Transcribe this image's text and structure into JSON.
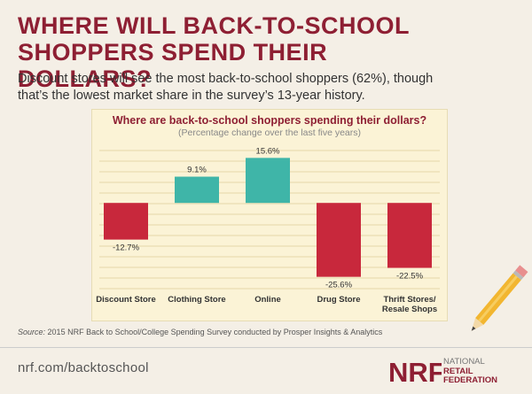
{
  "headline": "WHERE WILL BACK-TO-SCHOOL SHOPPERS SPEND THEIR DOLLARS?",
  "subtitle": "Discount stores will see the most back-to-school shoppers (62%), though that’s the lowest market share in the survey’s 13-year history.",
  "colors": {
    "accent": "#8e1f33",
    "positive_bar": "#3fb5a8",
    "negative_bar": "#c8283c",
    "chart_background": "#fbf3d6"
  },
  "chart_data": {
    "type": "bar",
    "title": "Where are back-to-school shoppers spending their dollars?",
    "subtitle": "(Percentage change over the last five years)",
    "categories": [
      "Discount Store",
      "Clothing Store",
      "Online",
      "Drug Store",
      "Thrift Stores/ Resale Shops"
    ],
    "values": [
      -12.7,
      9.1,
      15.6,
      -25.6,
      -22.5
    ],
    "data_labels": [
      "-12.7%",
      "9.1%",
      "15.6%",
      "-25.6%",
      "-22.5%"
    ],
    "xlabel": "",
    "ylabel": "",
    "ylim": [
      -30,
      20
    ],
    "grid": true,
    "legend": "none"
  },
  "source": {
    "label": "Source:",
    "text": "2015 NRF Back to School/College Spending Survey conducted by Prosper Insights & Analytics"
  },
  "footer": {
    "url": "nrf.com/backtoschool",
    "logo_mark": "NRF",
    "logo_line1": "NATIONAL",
    "logo_line2": "RETAIL",
    "logo_line3": "FEDERATION"
  },
  "icons": [
    "pencil-icon",
    "nrf-logo"
  ]
}
